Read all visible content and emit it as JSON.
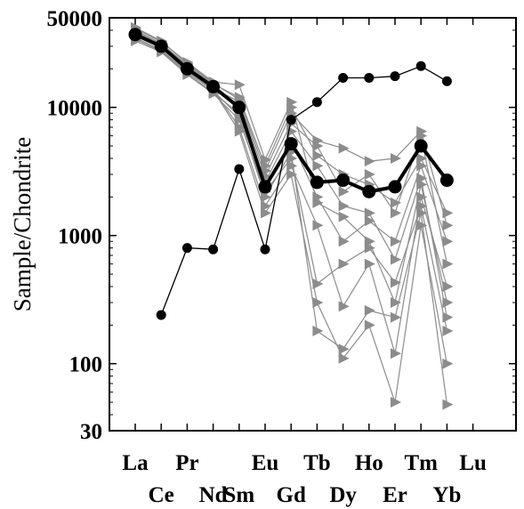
{
  "chart_data": {
    "type": "line",
    "ylabel": "Sample/Chondrite",
    "xlabel": "",
    "yscale": "log",
    "ylim": [
      30,
      50000
    ],
    "y_ticks": [
      "50000",
      "10000",
      "1000",
      "100",
      "30"
    ],
    "y_tick_values": [
      50000,
      10000,
      1000,
      100,
      30
    ],
    "categories": [
      "La",
      "Ce",
      "Pr",
      "Nd",
      "Sm",
      "Eu",
      "Gd",
      "Tb",
      "Dy",
      "Ho",
      "Er",
      "Tm",
      "Yb",
      "Lu"
    ],
    "x_tick_rows": [
      [
        "La",
        "Pr",
        "Eu",
        "Tb",
        "Ho",
        "Tm",
        "Lu"
      ],
      [
        "Ce",
        "Nd",
        "Sm",
        "Gd",
        "Dy",
        "Er",
        "Yb"
      ]
    ],
    "grid": false,
    "colors": {
      "highlight": "#000000",
      "background_series": "#8c8c8c"
    },
    "series": [
      {
        "style": "thick-black-circles",
        "values": [
          37000,
          30000,
          20000,
          14500,
          10000,
          2400,
          5200,
          2600,
          2700,
          2200,
          2400,
          5000,
          2700,
          null
        ]
      },
      {
        "style": "thin-black-circles",
        "values": [
          null,
          240,
          800,
          780,
          3300,
          780,
          8000,
          11000,
          17000,
          17000,
          17500,
          21000,
          16000,
          null
        ]
      },
      {
        "style": "gray-triangles",
        "values": [
          42000,
          33000,
          22000,
          15500,
          11500,
          3200,
          9000,
          5500,
          4800,
          3800,
          4000,
          6500,
          1200,
          null
        ]
      },
      {
        "style": "gray-triangles",
        "values": [
          39000,
          31000,
          21000,
          14800,
          9500,
          2600,
          6500,
          3500,
          1700,
          1500,
          650,
          2800,
          230,
          null
        ]
      },
      {
        "style": "gray-triangles",
        "values": [
          35000,
          28000,
          19000,
          13500,
          8500,
          2000,
          4500,
          180,
          130,
          260,
          230,
          1500,
          48,
          null
        ]
      },
      {
        "style": "gray-triangles",
        "values": [
          33000,
          27000,
          18000,
          12800,
          8000,
          2200,
          4000,
          420,
          600,
          800,
          430,
          1700,
          180,
          null
        ]
      },
      {
        "style": "gray-triangles",
        "values": [
          40000,
          31500,
          21500,
          15200,
          12000,
          3500,
          10000,
          4200,
          3000,
          2500,
          1800,
          4000,
          1500,
          null
        ]
      },
      {
        "style": "gray-triangles",
        "values": [
          36000,
          29000,
          19500,
          13800,
          7000,
          1700,
          3500,
          1200,
          280,
          600,
          120,
          2000,
          400,
          null
        ]
      },
      {
        "style": "gray-triangles",
        "values": [
          34000,
          27500,
          18500,
          13000,
          9000,
          2300,
          5500,
          2000,
          900,
          1300,
          900,
          3500,
          900,
          null
        ]
      },
      {
        "style": "gray-triangles",
        "values": [
          38000,
          30500,
          20500,
          14200,
          11000,
          2900,
          7500,
          5000,
          2200,
          3000,
          1500,
          6000,
          600,
          null
        ]
      },
      {
        "style": "gray-triangles",
        "values": [
          37000,
          29500,
          20000,
          13600,
          6500,
          1500,
          3000,
          300,
          110,
          200,
          50,
          1200,
          100,
          null
        ]
      },
      {
        "style": "gray-triangles",
        "values": [
          41000,
          32500,
          22500,
          15800,
          15000,
          3900,
          11000,
          1800,
          1400,
          900,
          300,
          2500,
          300,
          null
        ]
      }
    ]
  }
}
